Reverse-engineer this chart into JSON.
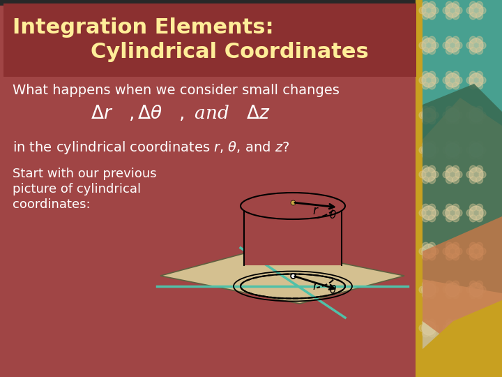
{
  "title_line1": "Integration Elements:",
  "title_line2": "Cylindrical Coordinates",
  "title_color": "#FFEE99",
  "slide_bg": "#A04545",
  "title_bg": "#8B3030",
  "line1": "What happens when we consider small changes",
  "line3": "in the cylindrical coordinates r, θ, and z?",
  "line4a": "Start with our previous",
  "line4b": "picture of cylindrical",
  "line4c": "coordinates:",
  "cylinder_fill": "#C8B090",
  "plane_fill": "#D4C090",
  "teal_color": "#50C0A8",
  "right_panel_bg": "#C8B888",
  "gold_bar": "#C8A020",
  "deco_teal": "#48A090",
  "deco_green": "#386850",
  "deco_orange": "#C87848"
}
